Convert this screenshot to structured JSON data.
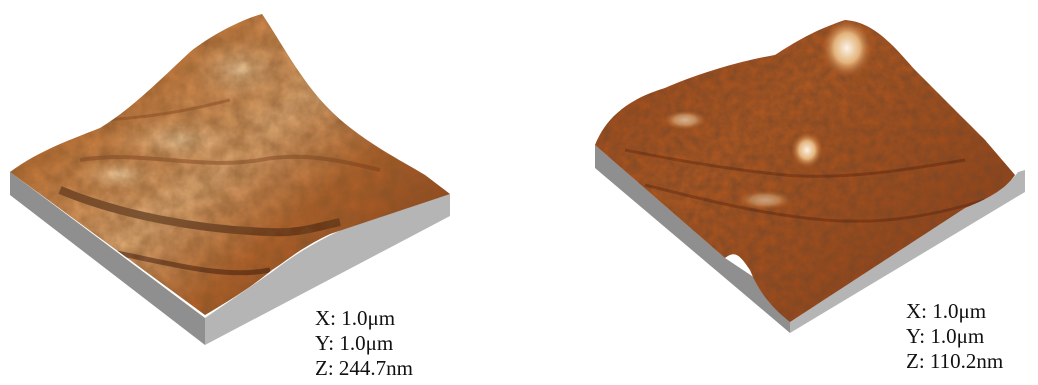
{
  "images": [
    {
      "scale": {
        "x": "X: 1.0μm",
        "y": "Y: 1.0μm",
        "z": "Z: 244.7nm"
      }
    },
    {
      "scale": {
        "x": "X: 1.0μm",
        "y": "Y: 1.0μm",
        "z": "Z: 110.2nm"
      }
    }
  ],
  "colors": {
    "surface_dark": "#6b2a0e",
    "surface_mid": "#b0561e",
    "surface_light": "#e3a76b",
    "highlight": "#f6e9d4",
    "base_side": "#8f8f8f",
    "base_front": "#b9b9b9"
  }
}
